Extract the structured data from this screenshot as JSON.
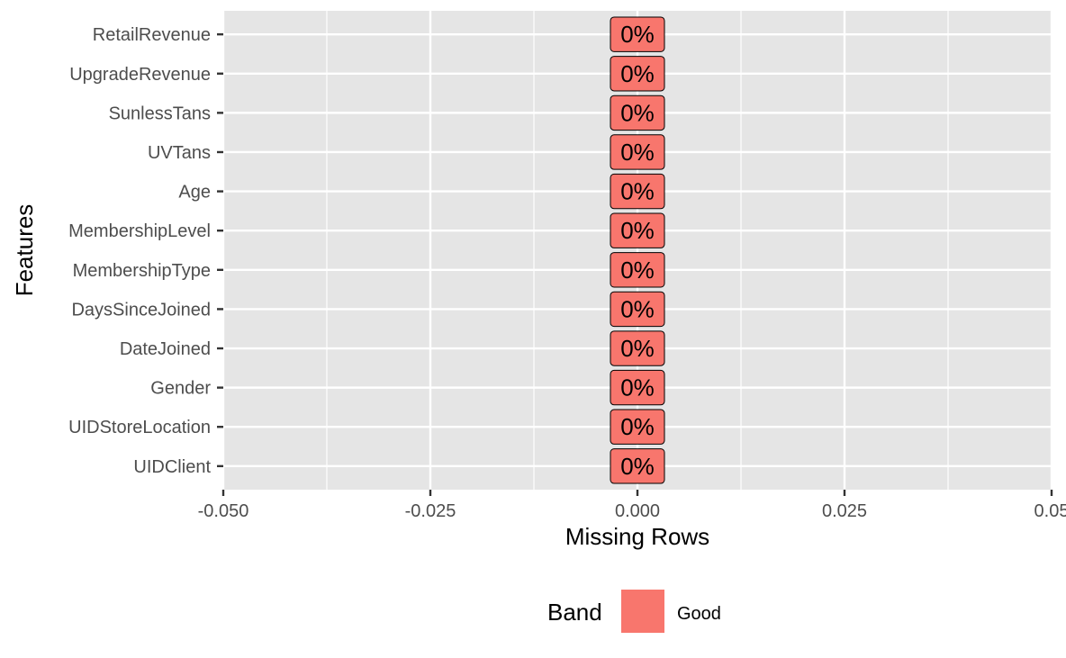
{
  "chart_data": {
    "type": "bar",
    "orientation": "horizontal",
    "categories": [
      "RetailRevenue",
      "UpgradeRevenue",
      "SunlessTans",
      "UVTans",
      "Age",
      "MembershipLevel",
      "MembershipType",
      "DaysSinceJoined",
      "DateJoined",
      "Gender",
      "UIDStoreLocation",
      "UIDClient"
    ],
    "values": [
      0,
      0,
      0,
      0,
      0,
      0,
      0,
      0,
      0,
      0,
      0,
      0
    ],
    "data_labels": [
      "0%",
      "0%",
      "0%",
      "0%",
      "0%",
      "0%",
      "0%",
      "0%",
      "0%",
      "0%",
      "0%",
      "0%"
    ],
    "bands": [
      "Good",
      "Good",
      "Good",
      "Good",
      "Good",
      "Good",
      "Good",
      "Good",
      "Good",
      "Good",
      "Good",
      "Good"
    ],
    "xlabel": "Missing Rows",
    "ylabel": "Features",
    "xlim": [
      -0.05,
      0.05
    ],
    "xticks": [
      -0.05,
      -0.025,
      0,
      0.025,
      0.05
    ],
    "xtick_labels": [
      "-0.050",
      "-0.025",
      "0.000",
      "0.025",
      "0.05"
    ],
    "grid": true,
    "legend": {
      "title": "Band",
      "position": "bottom",
      "entries": [
        {
          "label": "Good",
          "color": "#F8766D"
        }
      ]
    },
    "colors": {
      "panel": "#E5E5E5",
      "grid": "#FFFFFF",
      "bar": "#F8766D"
    }
  }
}
